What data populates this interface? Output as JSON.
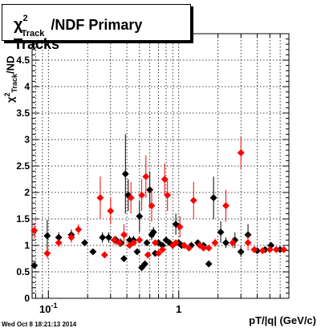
{
  "title": {
    "chi": "χ",
    "sup": "2",
    "sub": "Track",
    "rest": "/NDF  Primary Tracks"
  },
  "ylabel": {
    "chi": "χ",
    "sup": "2",
    "sub": "Track",
    "rest": "/ND"
  },
  "xlabel": "pT/|q| (GeV/c)",
  "datestamp": "Wed Oct  8 18:21:13 2014",
  "colors": {
    "series1": "#000000",
    "series2": "#ff0000",
    "grid": "#000000"
  },
  "chart_data": {
    "type": "scatter",
    "xscale": "log",
    "xlim": [
      0.075,
      7.0
    ],
    "ylim": [
      0,
      5
    ],
    "grid": true,
    "xticks": [
      {
        "value": 0.1,
        "label": "10",
        "exp": "-1"
      },
      {
        "value": 1.0,
        "label": "1",
        "exp": ""
      }
    ],
    "yticks": [
      {
        "value": 0,
        "label": "0"
      },
      {
        "value": 0.5,
        "label": "0.5"
      },
      {
        "value": 1,
        "label": "1"
      },
      {
        "value": 1.5,
        "label": "1.5"
      },
      {
        "value": 2,
        "label": "2"
      },
      {
        "value": 2.5,
        "label": "2.5"
      },
      {
        "value": 3,
        "label": "3"
      },
      {
        "value": 3.5,
        "label": "3.5"
      },
      {
        "value": 4,
        "label": "4"
      },
      {
        "value": 4.5,
        "label": "4.5"
      }
    ],
    "series": [
      {
        "color": "#000000",
        "points": [
          {
            "x": 0.078,
            "y": 0.62,
            "err": 0.05
          },
          {
            "x": 0.098,
            "y": 1.18,
            "err": 0.3
          },
          {
            "x": 0.12,
            "y": 1.15,
            "err": 0.1
          },
          {
            "x": 0.15,
            "y": 1.2,
            "err": 0.1
          },
          {
            "x": 0.19,
            "y": 1.05,
            "err": 0.05
          },
          {
            "x": 0.22,
            "y": 0.88,
            "err": 0.05
          },
          {
            "x": 0.26,
            "y": 1.15,
            "err": 0.1
          },
          {
            "x": 0.29,
            "y": 1.15,
            "err": 0.1
          },
          {
            "x": 0.33,
            "y": 1.1,
            "err": 0.08
          },
          {
            "x": 0.36,
            "y": 1.05,
            "err": 0.08
          },
          {
            "x": 0.38,
            "y": 0.75,
            "err": 0.05
          },
          {
            "x": 0.39,
            "y": 2.35,
            "err": 0.75
          },
          {
            "x": 0.41,
            "y": 1.95,
            "err": 0.3
          },
          {
            "x": 0.42,
            "y": 1.1,
            "err": 0.08
          },
          {
            "x": 0.45,
            "y": 1.1,
            "err": 0.08
          },
          {
            "x": 0.48,
            "y": 0.88,
            "err": 0.05
          },
          {
            "x": 0.5,
            "y": 1.55,
            "err": 0.3
          },
          {
            "x": 0.52,
            "y": 0.58,
            "err": 0.05
          },
          {
            "x": 0.55,
            "y": 0.65,
            "err": 0.05
          },
          {
            "x": 0.57,
            "y": 1.05,
            "err": 0.05
          },
          {
            "x": 0.6,
            "y": 2.05,
            "err": 0.35
          },
          {
            "x": 0.62,
            "y": 1.2,
            "err": 0.1
          },
          {
            "x": 0.64,
            "y": 1.25,
            "err": 0.1
          },
          {
            "x": 0.66,
            "y": 0.85,
            "err": 0.05
          },
          {
            "x": 0.7,
            "y": 1.05,
            "err": 0.05
          },
          {
            "x": 0.75,
            "y": 1.0,
            "err": 0.05
          },
          {
            "x": 0.8,
            "y": 1.1,
            "err": 0.05
          },
          {
            "x": 0.85,
            "y": 1.05,
            "err": 0.05
          },
          {
            "x": 0.9,
            "y": 1.0,
            "err": 0.05
          },
          {
            "x": 0.95,
            "y": 1.4,
            "err": 0.2
          },
          {
            "x": 1.0,
            "y": 1.05,
            "err": 0.05
          },
          {
            "x": 1.05,
            "y": 1.0,
            "err": 0.05
          },
          {
            "x": 1.1,
            "y": 1.0,
            "err": 0.05
          },
          {
            "x": 1.25,
            "y": 1.0,
            "err": 0.05
          },
          {
            "x": 1.4,
            "y": 1.05,
            "err": 0.05
          },
          {
            "x": 1.55,
            "y": 1.0,
            "err": 0.05
          },
          {
            "x": 1.7,
            "y": 0.65,
            "err": 0.05
          },
          {
            "x": 1.85,
            "y": 1.9,
            "err": 0.4
          },
          {
            "x": 2.1,
            "y": 1.25,
            "err": 0.2
          },
          {
            "x": 2.3,
            "y": 1.05,
            "err": 0.1
          },
          {
            "x": 2.7,
            "y": 1.1,
            "err": 0.15
          },
          {
            "x": 3.0,
            "y": 0.88,
            "err": 0.1
          },
          {
            "x": 3.4,
            "y": 1.2,
            "err": 0.2
          },
          {
            "x": 4.0,
            "y": 0.9,
            "err": 0.05
          },
          {
            "x": 4.6,
            "y": 0.92,
            "err": 0.05
          },
          {
            "x": 5.1,
            "y": 1.0,
            "err": 0.05
          },
          {
            "x": 6.0,
            "y": 0.92,
            "err": 0.05
          }
        ]
      },
      {
        "color": "#ff0000",
        "points": [
          {
            "x": 0.078,
            "y": 1.28,
            "err": 0.15
          },
          {
            "x": 0.098,
            "y": 0.85,
            "err": 0.1
          },
          {
            "x": 0.12,
            "y": 1.05,
            "err": 0.08
          },
          {
            "x": 0.15,
            "y": 1.15,
            "err": 0.1
          },
          {
            "x": 0.17,
            "y": 1.3,
            "err": 0.1
          },
          {
            "x": 0.25,
            "y": 1.9,
            "err": 0.4
          },
          {
            "x": 0.27,
            "y": 0.82,
            "err": 0.05
          },
          {
            "x": 0.3,
            "y": 1.65,
            "err": 0.25
          },
          {
            "x": 0.32,
            "y": 1.1,
            "err": 0.08
          },
          {
            "x": 0.35,
            "y": 1.05,
            "err": 0.08
          },
          {
            "x": 0.38,
            "y": 1.2,
            "err": 0.2
          },
          {
            "x": 0.42,
            "y": 1.0,
            "err": 0.05
          },
          {
            "x": 0.43,
            "y": 1.9,
            "err": 0.3
          },
          {
            "x": 0.45,
            "y": 1.05,
            "err": 0.05
          },
          {
            "x": 0.5,
            "y": 1.1,
            "err": 0.05
          },
          {
            "x": 0.52,
            "y": 1.95,
            "err": 0.3
          },
          {
            "x": 0.56,
            "y": 2.3,
            "err": 0.4
          },
          {
            "x": 0.58,
            "y": 0.82,
            "err": 0.05
          },
          {
            "x": 0.62,
            "y": 1.75,
            "err": 0.3
          },
          {
            "x": 0.66,
            "y": 1.05,
            "err": 0.05
          },
          {
            "x": 0.7,
            "y": 0.85,
            "err": 0.05
          },
          {
            "x": 0.75,
            "y": 0.92,
            "err": 0.05
          },
          {
            "x": 0.78,
            "y": 2.25,
            "err": 0.3
          },
          {
            "x": 0.82,
            "y": 1.95,
            "err": 0.3
          },
          {
            "x": 0.9,
            "y": 1.0,
            "err": 0.05
          },
          {
            "x": 0.95,
            "y": 1.05,
            "err": 0.05
          },
          {
            "x": 1.02,
            "y": 1.35,
            "err": 0.2
          },
          {
            "x": 1.1,
            "y": 1.0,
            "err": 0.05
          },
          {
            "x": 1.2,
            "y": 0.95,
            "err": 0.05
          },
          {
            "x": 1.3,
            "y": 1.85,
            "err": 0.35
          },
          {
            "x": 1.45,
            "y": 1.0,
            "err": 0.05
          },
          {
            "x": 1.55,
            "y": 0.95,
            "err": 0.05
          },
          {
            "x": 1.7,
            "y": 0.95,
            "err": 0.05
          },
          {
            "x": 1.9,
            "y": 1.05,
            "err": 0.08
          },
          {
            "x": 2.3,
            "y": 1.75,
            "err": 0.3
          },
          {
            "x": 2.6,
            "y": 1.05,
            "err": 0.1
          },
          {
            "x": 3.0,
            "y": 2.75,
            "err": 0.3
          },
          {
            "x": 3.4,
            "y": 1.05,
            "err": 0.15
          },
          {
            "x": 3.8,
            "y": 0.92,
            "err": 0.05
          },
          {
            "x": 4.4,
            "y": 0.9,
            "err": 0.05
          },
          {
            "x": 5.0,
            "y": 0.92,
            "err": 0.05
          },
          {
            "x": 5.6,
            "y": 0.92,
            "err": 0.05
          },
          {
            "x": 6.4,
            "y": 0.92,
            "err": 0.05
          }
        ]
      }
    ]
  }
}
